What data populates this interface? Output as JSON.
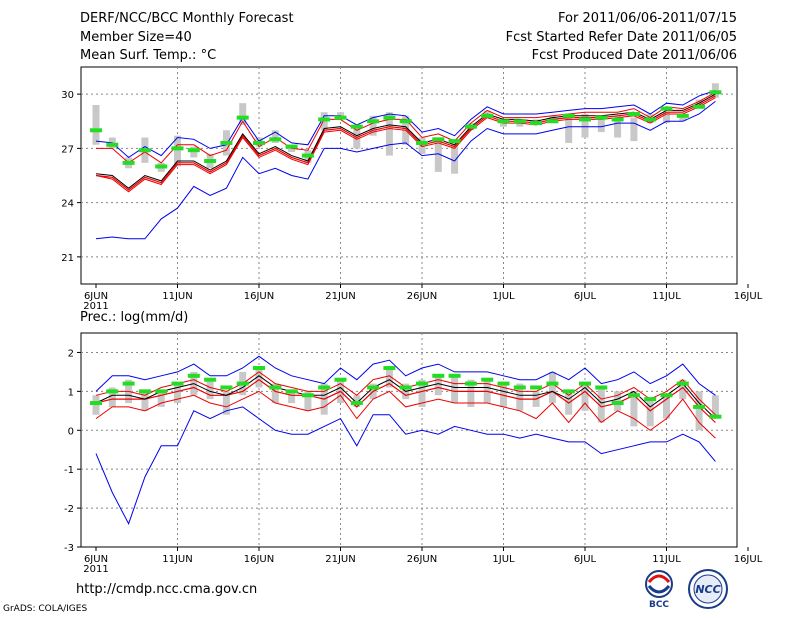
{
  "header": {
    "title": "DERF/NCC/BCC Monthly Forecast",
    "member_size": "Member Size=40",
    "variable": "Mean Surf. Temp.: °C",
    "period": "For 2011/06/06-2011/07/15",
    "refer_date": "Fcst Started Refer Date 2011/06/05",
    "produced_date": "Fcst Produced Date 2011/06/06"
  },
  "footer": {
    "url": "http://cmdp.ncc.cma.gov.cn",
    "credit": "GrADS: COLA/IGES",
    "logo_bcc": "BCC",
    "logo_ncc": "NCC"
  },
  "colors": {
    "max_min": "#0000ee",
    "pct": "#ee0000",
    "median": "#000000",
    "box": "#c8c8c8",
    "mean": "#22dd22",
    "grid": "#888888"
  },
  "chart_data": [
    {
      "type": "line",
      "title": "Mean Surf. Temp.: °C",
      "x_tick_labels": [
        "6JUN",
        "11JUN",
        "16JUN",
        "21JUN",
        "26JUN",
        "1JUL",
        "6JUL",
        "11JUL",
        "16JUL"
      ],
      "x_year_label": "2011",
      "ylim": [
        19.5,
        31.5
      ],
      "y_ticks": [
        21,
        24,
        27,
        30
      ],
      "series": [
        {
          "name": "max",
          "values": [
            27.4,
            27.3,
            26.5,
            27.1,
            26.6,
            27.6,
            27.5,
            27.0,
            27.2,
            28.7,
            27.4,
            27.9,
            27.3,
            27.2,
            28.8,
            28.8,
            28.3,
            28.7,
            28.9,
            28.8,
            27.9,
            28.1,
            27.7,
            28.6,
            29.3,
            28.9,
            28.9,
            28.9,
            29.0,
            29.1,
            29.2,
            29.2,
            29.3,
            29.4,
            28.9,
            29.5,
            29.4,
            29.9,
            30.2
          ]
        },
        {
          "name": "p84",
          "values": [
            27.0,
            27.0,
            26.2,
            26.8,
            26.2,
            27.2,
            27.2,
            26.6,
            26.9,
            28.5,
            27.1,
            27.6,
            27.0,
            26.9,
            28.6,
            28.6,
            28.0,
            28.4,
            28.6,
            28.6,
            27.6,
            27.8,
            27.4,
            28.4,
            29.1,
            28.7,
            28.7,
            28.7,
            28.8,
            28.9,
            29.0,
            29.0,
            29.0,
            29.2,
            28.7,
            29.3,
            29.2,
            29.6,
            30.1
          ]
        },
        {
          "name": "median",
          "values": [
            25.6,
            25.5,
            24.8,
            25.5,
            25.2,
            26.3,
            26.3,
            25.8,
            26.3,
            27.8,
            26.7,
            27.1,
            26.6,
            26.3,
            28.1,
            28.2,
            27.7,
            28.1,
            28.3,
            28.2,
            27.3,
            27.5,
            27.2,
            28.2,
            28.9,
            28.6,
            28.6,
            28.5,
            28.7,
            28.8,
            28.8,
            28.8,
            28.9,
            29.0,
            28.6,
            29.1,
            29.1,
            29.5,
            30.0
          ]
        },
        {
          "name": "mean",
          "values": [
            25.5,
            25.4,
            24.7,
            25.4,
            25.1,
            26.2,
            26.2,
            25.7,
            26.2,
            27.7,
            26.6,
            27.0,
            26.5,
            26.2,
            28.0,
            28.1,
            27.6,
            28.0,
            28.2,
            28.1,
            27.2,
            27.4,
            27.1,
            28.1,
            28.8,
            28.5,
            28.5,
            28.4,
            28.6,
            28.7,
            28.7,
            28.7,
            28.8,
            28.9,
            28.5,
            29.0,
            29.0,
            29.4,
            29.9
          ]
        },
        {
          "name": "p16",
          "values": [
            25.5,
            25.3,
            24.6,
            25.3,
            25.0,
            26.1,
            26.1,
            25.6,
            26.1,
            27.6,
            26.5,
            26.9,
            26.4,
            26.1,
            27.9,
            28.0,
            27.5,
            27.9,
            28.1,
            28.0,
            27.1,
            27.3,
            27.0,
            28.0,
            28.7,
            28.4,
            28.4,
            28.3,
            28.5,
            28.6,
            28.6,
            28.6,
            28.7,
            28.8,
            28.4,
            28.9,
            28.9,
            29.3,
            29.8
          ]
        },
        {
          "name": "min",
          "values": [
            22.0,
            22.1,
            22.0,
            22.0,
            23.1,
            23.7,
            24.9,
            24.4,
            24.8,
            26.5,
            25.6,
            25.9,
            25.5,
            25.3,
            27.0,
            27.0,
            26.8,
            27.0,
            27.2,
            27.3,
            26.6,
            26.7,
            26.3,
            27.4,
            28.1,
            27.8,
            27.8,
            27.8,
            28.0,
            28.2,
            28.2,
            28.2,
            28.4,
            28.4,
            28.0,
            28.5,
            28.5,
            28.9,
            29.6
          ]
        }
      ],
      "box_ranges": [
        [
          27.2,
          29.4
        ],
        [
          27.0,
          27.6
        ],
        [
          25.9,
          26.5
        ],
        [
          26.2,
          27.6
        ],
        [
          25.7,
          26.2
        ],
        [
          26.0,
          27.7
        ],
        [
          26.5,
          27.1
        ],
        [
          25.9,
          26.7
        ],
        [
          26.6,
          28.0
        ],
        [
          28.3,
          29.5
        ],
        [
          27.1,
          27.6
        ],
        [
          27.3,
          28.0
        ],
        [
          26.8,
          27.2
        ],
        [
          26.2,
          26.9
        ],
        [
          28.0,
          29.0
        ],
        [
          28.6,
          29.0
        ],
        [
          27.0,
          28.2
        ],
        [
          27.7,
          28.8
        ],
        [
          26.6,
          29.0
        ],
        [
          27.2,
          28.8
        ],
        [
          26.7,
          27.6
        ],
        [
          25.7,
          27.5
        ],
        [
          25.6,
          27.5
        ],
        [
          28.0,
          28.4
        ],
        [
          28.7,
          29.1
        ],
        [
          28.2,
          28.6
        ],
        [
          28.2,
          28.6
        ],
        [
          28.4,
          28.6
        ],
        [
          28.4,
          28.8
        ],
        [
          27.3,
          28.7
        ],
        [
          27.6,
          28.9
        ],
        [
          27.9,
          28.6
        ],
        [
          27.6,
          28.8
        ],
        [
          27.4,
          28.7
        ],
        [
          28.4,
          28.9
        ],
        [
          28.4,
          29.0
        ],
        [
          28.5,
          28.9
        ],
        [
          29.2,
          29.7
        ],
        [
          29.8,
          30.6
        ]
      ],
      "ensemble_mean_marks": [
        28.0,
        27.2,
        26.2,
        26.9,
        26.0,
        27.0,
        26.9,
        26.3,
        27.3,
        28.7,
        27.3,
        27.5,
        27.1,
        26.6,
        28.6,
        28.7,
        28.2,
        28.5,
        28.7,
        28.5,
        27.3,
        27.5,
        27.4,
        28.2,
        28.8,
        28.5,
        28.5,
        28.4,
        28.5,
        28.8,
        28.6,
        28.7,
        28.6,
        28.9,
        28.6,
        29.2,
        28.8,
        29.3,
        30.1
      ]
    },
    {
      "type": "line",
      "title": "Prec.: log(mm/d)",
      "x_tick_labels": [
        "6JUN",
        "11JUN",
        "16JUN",
        "21JUN",
        "26JUN",
        "1JUL",
        "6JUL",
        "11JUL",
        "16JUL"
      ],
      "x_year_label": "2011",
      "ylim": [
        -3,
        2.5
      ],
      "y_ticks": [
        -3,
        -2,
        -1,
        0,
        1,
        2
      ],
      "series": [
        {
          "name": "max",
          "values": [
            1.0,
            1.4,
            1.4,
            1.3,
            1.4,
            1.5,
            1.7,
            1.4,
            1.4,
            1.6,
            1.9,
            1.6,
            1.4,
            1.3,
            1.2,
            1.6,
            1.3,
            1.7,
            1.8,
            1.4,
            1.6,
            1.7,
            1.5,
            1.5,
            1.5,
            1.4,
            1.3,
            1.3,
            1.5,
            1.3,
            1.6,
            1.2,
            1.3,
            1.5,
            1.2,
            1.4,
            1.7,
            1.2,
            0.9
          ]
        },
        {
          "name": "p84",
          "values": [
            0.9,
            1.0,
            1.0,
            0.9,
            1.1,
            1.2,
            1.3,
            1.1,
            1.0,
            1.2,
            1.5,
            1.2,
            1.1,
            1.0,
            1.0,
            1.2,
            0.9,
            1.3,
            1.4,
            1.1,
            1.2,
            1.3,
            1.2,
            1.2,
            1.2,
            1.1,
            1.0,
            1.0,
            1.2,
            0.9,
            1.2,
            0.8,
            0.9,
            1.1,
            0.8,
            1.0,
            1.3,
            0.8,
            0.4
          ]
        },
        {
          "name": "median",
          "values": [
            0.7,
            0.9,
            0.9,
            0.8,
            1.0,
            1.1,
            1.2,
            1.0,
            0.9,
            1.1,
            1.4,
            1.1,
            1.0,
            0.9,
            0.9,
            1.1,
            0.7,
            1.1,
            1.3,
            1.0,
            1.1,
            1.2,
            1.1,
            1.1,
            1.1,
            1.0,
            0.9,
            0.9,
            1.0,
            0.8,
            1.1,
            0.7,
            0.8,
            1.0,
            0.6,
            0.9,
            1.2,
            0.7,
            0.3
          ]
        },
        {
          "name": "mean",
          "values": [
            0.7,
            0.8,
            0.8,
            0.8,
            0.9,
            1.0,
            1.1,
            0.9,
            0.9,
            1.0,
            1.3,
            1.0,
            0.9,
            0.9,
            0.8,
            1.0,
            0.6,
            1.0,
            1.2,
            0.9,
            1.0,
            1.1,
            1.0,
            1.0,
            1.0,
            0.9,
            0.8,
            0.8,
            1.0,
            0.7,
            1.0,
            0.6,
            0.7,
            0.9,
            0.5,
            0.8,
            1.1,
            0.6,
            0.2
          ]
        },
        {
          "name": "p16",
          "values": [
            0.3,
            0.6,
            0.6,
            0.5,
            0.7,
            0.8,
            0.9,
            0.7,
            0.6,
            0.8,
            1.0,
            0.7,
            0.6,
            0.5,
            0.6,
            0.9,
            0.3,
            0.8,
            1.0,
            0.6,
            0.7,
            0.8,
            0.7,
            0.7,
            0.7,
            0.6,
            0.5,
            0.3,
            0.7,
            0.2,
            0.7,
            0.2,
            0.5,
            0.3,
            0.0,
            0.3,
            0.8,
            0.2,
            -0.2
          ]
        },
        {
          "name": "min",
          "values": [
            -0.6,
            -1.6,
            -2.4,
            -1.2,
            -0.4,
            -0.4,
            0.5,
            0.3,
            0.5,
            0.6,
            0.3,
            0.0,
            -0.1,
            -0.1,
            0.1,
            0.3,
            -0.4,
            0.4,
            0.4,
            -0.1,
            0.0,
            -0.1,
            0.1,
            0.0,
            -0.1,
            -0.1,
            -0.2,
            -0.1,
            -0.2,
            -0.3,
            -0.3,
            -0.6,
            -0.5,
            -0.4,
            -0.3,
            -0.3,
            -0.1,
            -0.3,
            -0.8
          ]
        }
      ],
      "box_ranges": [
        [
          0.4,
          0.9
        ],
        [
          0.6,
          1.1
        ],
        [
          0.7,
          1.3
        ],
        [
          0.5,
          1.0
        ],
        [
          0.6,
          1.0
        ],
        [
          0.7,
          1.2
        ],
        [
          0.9,
          1.5
        ],
        [
          0.8,
          1.3
        ],
        [
          0.4,
          1.0
        ],
        [
          0.9,
          1.5
        ],
        [
          1.1,
          1.6
        ],
        [
          0.7,
          1.2
        ],
        [
          0.7,
          1.0
        ],
        [
          0.5,
          1.0
        ],
        [
          0.4,
          1.2
        ],
        [
          0.7,
          1.3
        ],
        [
          0.6,
          0.9
        ],
        [
          0.8,
          1.2
        ],
        [
          1.1,
          1.6
        ],
        [
          0.8,
          1.2
        ],
        [
          0.6,
          1.3
        ],
        [
          0.9,
          1.4
        ],
        [
          0.7,
          1.4
        ],
        [
          0.6,
          1.3
        ],
        [
          0.7,
          1.3
        ],
        [
          0.6,
          1.2
        ],
        [
          0.5,
          1.2
        ],
        [
          0.6,
          1.0
        ],
        [
          0.7,
          1.5
        ],
        [
          0.4,
          1.0
        ],
        [
          0.5,
          1.2
        ],
        [
          0.2,
          1.1
        ],
        [
          0.5,
          1.0
        ],
        [
          0.1,
          1.0
        ],
        [
          0.1,
          0.8
        ],
        [
          0.3,
          0.9
        ],
        [
          0.8,
          1.3
        ],
        [
          0.0,
          1.0
        ],
        [
          0.3,
          0.9
        ]
      ],
      "ensemble_mean_marks": [
        0.7,
        1.0,
        1.2,
        1.0,
        1.0,
        1.2,
        1.4,
        1.3,
        1.1,
        1.2,
        1.6,
        1.1,
        1.0,
        0.9,
        1.1,
        1.3,
        0.7,
        1.1,
        1.6,
        1.1,
        1.2,
        1.4,
        1.4,
        1.2,
        1.3,
        1.2,
        1.1,
        1.1,
        1.2,
        1.0,
        1.2,
        1.1,
        0.7,
        0.9,
        0.8,
        0.9,
        1.2,
        0.6,
        0.35
      ]
    }
  ]
}
